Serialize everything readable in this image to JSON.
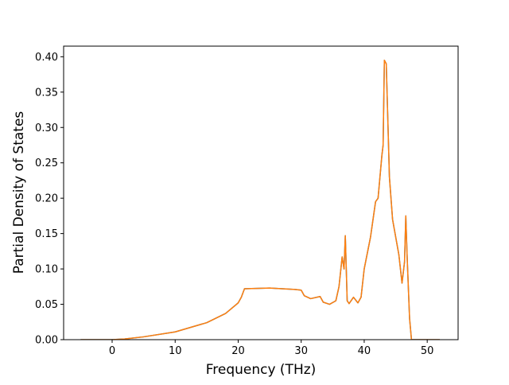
{
  "chart_data": {
    "type": "line",
    "xlabel": "Frequency (THz)",
    "ylabel": "Partial Density of States",
    "x": [
      -5,
      0,
      2,
      5,
      10,
      15,
      18,
      20,
      20.5,
      21,
      25,
      29,
      30,
      30.5,
      31.5,
      33,
      33.5,
      34.5,
      35.5,
      36,
      36.5,
      36.8,
      37,
      37.3,
      37.6,
      38.3,
      39,
      39.5,
      40,
      41,
      41.8,
      42.2,
      42.8,
      43,
      43.2,
      43.5,
      44,
      44.5,
      45.5,
      46,
      46.4,
      46.6,
      46.8,
      47.2,
      47.5,
      52
    ],
    "series": [
      {
        "color": "#1f77b4",
        "values": [
          0,
          0,
          0.001,
          0.004,
          0.011,
          0.024,
          0.037,
          0.052,
          0.06,
          0.072,
          0.073,
          0.071,
          0.07,
          0.062,
          0.058,
          0.061,
          0.053,
          0.05,
          0.055,
          0.075,
          0.117,
          0.1,
          0.147,
          0.055,
          0.051,
          0.06,
          0.052,
          0.06,
          0.1,
          0.145,
          0.195,
          0.2,
          0.26,
          0.275,
          0.395,
          0.39,
          0.23,
          0.17,
          0.12,
          0.08,
          0.11,
          0.175,
          0.12,
          0.03,
          0,
          0
        ]
      },
      {
        "color": "#ff7f0e",
        "values": [
          0,
          0,
          0.001,
          0.004,
          0.011,
          0.024,
          0.037,
          0.052,
          0.06,
          0.072,
          0.073,
          0.071,
          0.07,
          0.062,
          0.058,
          0.061,
          0.053,
          0.05,
          0.055,
          0.075,
          0.117,
          0.1,
          0.147,
          0.055,
          0.051,
          0.06,
          0.052,
          0.06,
          0.1,
          0.145,
          0.195,
          0.2,
          0.26,
          0.275,
          0.395,
          0.39,
          0.23,
          0.17,
          0.12,
          0.08,
          0.11,
          0.175,
          0.12,
          0.03,
          0,
          0
        ]
      }
    ],
    "xlim": [
      -7.7,
      54.9
    ],
    "xticks": [
      0,
      10,
      20,
      30,
      40,
      50
    ],
    "ylim": [
      0,
      0.415
    ],
    "yticks": [
      {
        "value": 0,
        "label": "0.00"
      },
      0.05,
      {
        "value": 0.1,
        "label": "0.10"
      },
      0.15,
      {
        "value": 0.2,
        "label": "0.20"
      },
      0.25,
      {
        "value": 0.3,
        "label": "0.30"
      },
      0.35,
      {
        "value": 0.4,
        "label": "0.40"
      }
    ],
    "grid": false
  }
}
